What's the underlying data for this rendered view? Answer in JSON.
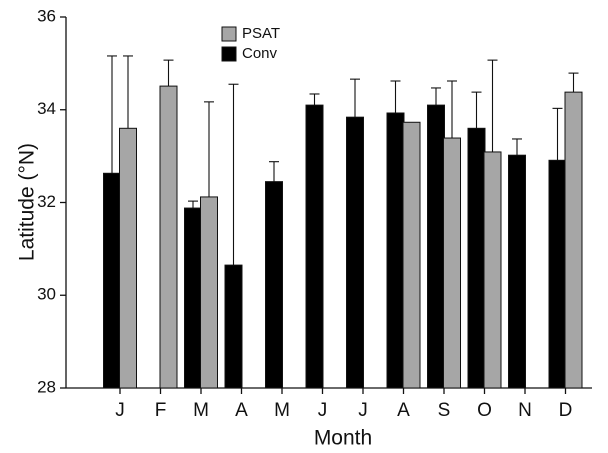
{
  "chart_data": {
    "type": "bar",
    "x_label": "Month",
    "y_label": "Latitude (°N)",
    "categories": [
      "J",
      "F",
      "M",
      "A",
      "M",
      "J",
      "J",
      "A",
      "S",
      "O",
      "N",
      "D"
    ],
    "series": [
      {
        "name": "PSAT",
        "color": "#a6a6a6",
        "values": [
          33.6,
          34.51,
          32.12,
          null,
          null,
          null,
          null,
          33.73,
          33.39,
          33.09,
          null,
          34.38
        ],
        "errors": [
          1.56,
          0.56,
          2.05,
          null,
          null,
          null,
          null,
          null,
          1.23,
          1.98,
          null,
          0.41
        ]
      },
      {
        "name": "Conv",
        "color": "#000000",
        "values": [
          32.63,
          null,
          31.88,
          30.65,
          32.45,
          34.1,
          33.84,
          33.93,
          34.1,
          33.6,
          33.02,
          32.91
        ],
        "errors": [
          2.53,
          null,
          0.15,
          3.9,
          0.43,
          0.24,
          0.82,
          0.69,
          0.37,
          0.78,
          0.35,
          1.12
        ]
      }
    ],
    "ylim": [
      28,
      36
    ],
    "yticks": [
      28,
      30,
      32,
      34,
      36
    ],
    "legend": "upper-left"
  }
}
